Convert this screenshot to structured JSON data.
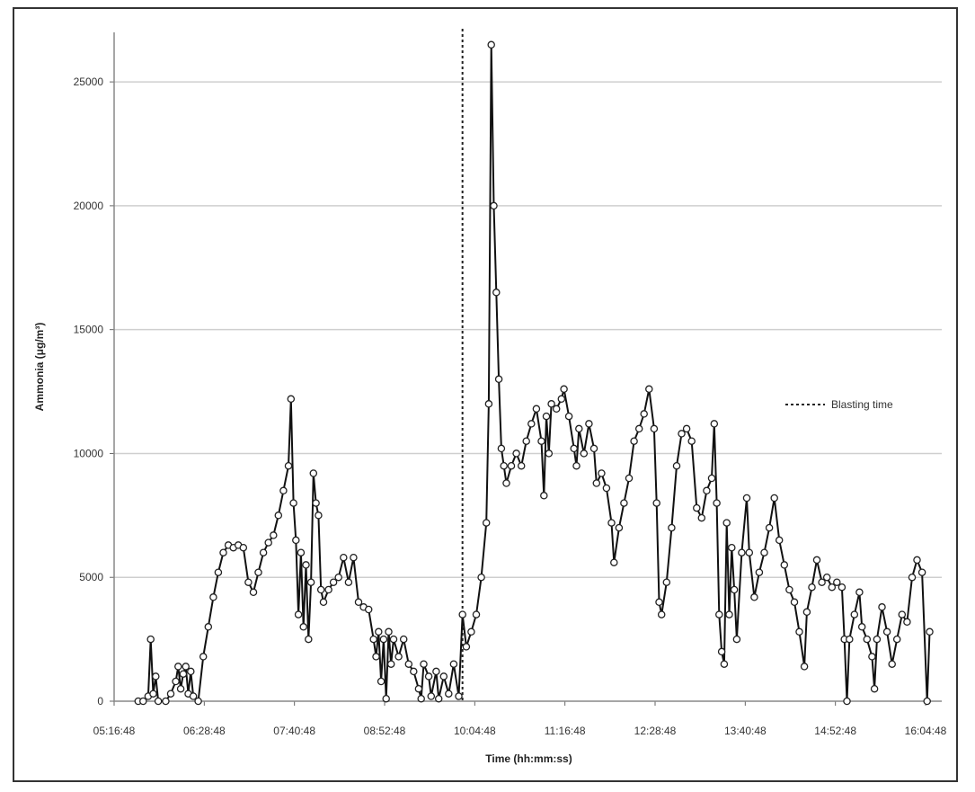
{
  "chart_data": {
    "type": "line",
    "xlabel": "Time (hh:mm:ss)",
    "ylabel": "Ammonia (μg/m³)",
    "x_tick_labels": [
      "05:16:48",
      "06:28:48",
      "07:40:48",
      "08:52:48",
      "10:04:48",
      "11:16:48",
      "12:28:48",
      "13:40:48",
      "14:52:48",
      "16:04:48"
    ],
    "y_ticks": [
      0,
      5000,
      10000,
      15000,
      20000,
      25000
    ],
    "ylim": [
      0,
      27000
    ],
    "grid": "horizontal",
    "legend": {
      "label": "Blasting time",
      "placement": "right",
      "style": "dotted line"
    },
    "blasting_time": "09:55",
    "series": [
      {
        "marker": "open circle",
        "points": [
          [
            "05:36",
            0
          ],
          [
            "05:40",
            0
          ],
          [
            "05:44",
            200
          ],
          [
            "05:46",
            2500
          ],
          [
            "05:48",
            300
          ],
          [
            "05:50",
            1000
          ],
          [
            "05:52",
            0
          ],
          [
            "05:58",
            0
          ],
          [
            "06:02",
            300
          ],
          [
            "06:06",
            800
          ],
          [
            "06:08",
            1400
          ],
          [
            "06:10",
            500
          ],
          [
            "06:12",
            1100
          ],
          [
            "06:14",
            1400
          ],
          [
            "06:16",
            300
          ],
          [
            "06:18",
            1200
          ],
          [
            "06:20",
            200
          ],
          [
            "06:24",
            0
          ],
          [
            "06:28",
            1800
          ],
          [
            "06:32",
            3000
          ],
          [
            "06:36",
            4200
          ],
          [
            "06:40",
            5200
          ],
          [
            "06:44",
            6000
          ],
          [
            "06:48",
            6300
          ],
          [
            "06:52",
            6200
          ],
          [
            "06:56",
            6300
          ],
          [
            "07:00",
            6200
          ],
          [
            "07:04",
            4800
          ],
          [
            "07:08",
            4400
          ],
          [
            "07:12",
            5200
          ],
          [
            "07:16",
            6000
          ],
          [
            "07:20",
            6400
          ],
          [
            "07:24",
            6700
          ],
          [
            "07:28",
            7500
          ],
          [
            "07:32",
            8500
          ],
          [
            "07:36",
            9500
          ],
          [
            "07:38",
            12200
          ],
          [
            "07:40",
            8000
          ],
          [
            "07:42",
            6500
          ],
          [
            "07:44",
            3500
          ],
          [
            "07:46",
            6000
          ],
          [
            "07:48",
            3000
          ],
          [
            "07:50",
            5500
          ],
          [
            "07:52",
            2500
          ],
          [
            "07:54",
            4800
          ],
          [
            "07:56",
            9200
          ],
          [
            "07:58",
            8000
          ],
          [
            "08:00",
            7500
          ],
          [
            "08:02",
            4500
          ],
          [
            "08:04",
            4000
          ],
          [
            "08:08",
            4500
          ],
          [
            "08:12",
            4800
          ],
          [
            "08:16",
            5000
          ],
          [
            "08:20",
            5800
          ],
          [
            "08:24",
            4800
          ],
          [
            "08:28",
            5800
          ],
          [
            "08:32",
            4000
          ],
          [
            "08:36",
            3800
          ],
          [
            "08:40",
            3700
          ],
          [
            "08:44",
            2500
          ],
          [
            "08:46",
            1800
          ],
          [
            "08:48",
            2800
          ],
          [
            "08:50",
            800
          ],
          [
            "08:52",
            2500
          ],
          [
            "08:54",
            100
          ],
          [
            "08:56",
            2800
          ],
          [
            "08:58",
            1500
          ],
          [
            "09:00",
            2500
          ],
          [
            "09:04",
            1800
          ],
          [
            "09:08",
            2500
          ],
          [
            "09:12",
            1500
          ],
          [
            "09:16",
            1200
          ],
          [
            "09:20",
            500
          ],
          [
            "09:22",
            100
          ],
          [
            "09:24",
            1500
          ],
          [
            "09:28",
            1000
          ],
          [
            "09:30",
            200
          ],
          [
            "09:34",
            1200
          ],
          [
            "09:36",
            100
          ],
          [
            "09:40",
            1000
          ],
          [
            "09:44",
            300
          ],
          [
            "09:48",
            1500
          ],
          [
            "09:52",
            200
          ],
          [
            "09:55",
            3500
          ],
          [
            "09:58",
            2200
          ],
          [
            "10:02",
            2800
          ],
          [
            "10:06",
            3500
          ],
          [
            "10:10",
            5000
          ],
          [
            "10:14",
            7200
          ],
          [
            "10:16",
            12000
          ],
          [
            "10:18",
            26500
          ],
          [
            "10:20",
            20000
          ],
          [
            "10:22",
            16500
          ],
          [
            "10:24",
            13000
          ],
          [
            "10:26",
            10200
          ],
          [
            "10:28",
            9500
          ],
          [
            "10:30",
            8800
          ],
          [
            "10:34",
            9500
          ],
          [
            "10:38",
            10000
          ],
          [
            "10:42",
            9500
          ],
          [
            "10:46",
            10500
          ],
          [
            "10:50",
            11200
          ],
          [
            "10:54",
            11800
          ],
          [
            "10:58",
            10500
          ],
          [
            "11:00",
            8300
          ],
          [
            "11:02",
            11500
          ],
          [
            "11:04",
            10000
          ],
          [
            "11:06",
            12000
          ],
          [
            "11:10",
            11800
          ],
          [
            "11:14",
            12200
          ],
          [
            "11:16",
            12600
          ],
          [
            "11:20",
            11500
          ],
          [
            "11:24",
            10200
          ],
          [
            "11:26",
            9500
          ],
          [
            "11:28",
            11000
          ],
          [
            "11:32",
            10000
          ],
          [
            "11:36",
            11200
          ],
          [
            "11:40",
            10200
          ],
          [
            "11:42",
            8800
          ],
          [
            "11:46",
            9200
          ],
          [
            "11:50",
            8600
          ],
          [
            "11:54",
            7200
          ],
          [
            "11:56",
            5600
          ],
          [
            "12:00",
            7000
          ],
          [
            "12:04",
            8000
          ],
          [
            "12:08",
            9000
          ],
          [
            "12:12",
            10500
          ],
          [
            "12:16",
            11000
          ],
          [
            "12:20",
            11600
          ],
          [
            "12:24",
            12600
          ],
          [
            "12:28",
            11000
          ],
          [
            "12:30",
            8000
          ],
          [
            "12:32",
            4000
          ],
          [
            "12:34",
            3500
          ],
          [
            "12:38",
            4800
          ],
          [
            "12:42",
            7000
          ],
          [
            "12:46",
            9500
          ],
          [
            "12:50",
            10800
          ],
          [
            "12:54",
            11000
          ],
          [
            "12:58",
            10500
          ],
          [
            "13:02",
            7800
          ],
          [
            "13:06",
            7400
          ],
          [
            "13:10",
            8500
          ],
          [
            "13:14",
            9000
          ],
          [
            "13:16",
            11200
          ],
          [
            "13:18",
            8000
          ],
          [
            "13:20",
            3500
          ],
          [
            "13:22",
            2000
          ],
          [
            "13:24",
            1500
          ],
          [
            "13:26",
            7200
          ],
          [
            "13:28",
            3500
          ],
          [
            "13:30",
            6200
          ],
          [
            "13:32",
            4500
          ],
          [
            "13:34",
            2500
          ],
          [
            "13:38",
            6000
          ],
          [
            "13:42",
            8200
          ],
          [
            "13:44",
            6000
          ],
          [
            "13:48",
            4200
          ],
          [
            "13:52",
            5200
          ],
          [
            "13:56",
            6000
          ],
          [
            "14:00",
            7000
          ],
          [
            "14:04",
            8200
          ],
          [
            "14:08",
            6500
          ],
          [
            "14:12",
            5500
          ],
          [
            "14:16",
            4500
          ],
          [
            "14:20",
            4000
          ],
          [
            "14:24",
            2800
          ],
          [
            "14:28",
            1400
          ],
          [
            "14:30",
            3600
          ],
          [
            "14:34",
            4600
          ],
          [
            "14:38",
            5700
          ],
          [
            "14:42",
            4800
          ],
          [
            "14:46",
            5000
          ],
          [
            "14:50",
            4600
          ],
          [
            "14:54",
            4800
          ],
          [
            "14:58",
            4600
          ],
          [
            "15:00",
            2500
          ],
          [
            "15:02",
            0
          ],
          [
            "15:04",
            2500
          ],
          [
            "15:08",
            3500
          ],
          [
            "15:12",
            4400
          ],
          [
            "15:14",
            3000
          ],
          [
            "15:18",
            2500
          ],
          [
            "15:22",
            1800
          ],
          [
            "15:24",
            500
          ],
          [
            "15:26",
            2500
          ],
          [
            "15:30",
            3800
          ],
          [
            "15:34",
            2800
          ],
          [
            "15:38",
            1500
          ],
          [
            "15:42",
            2500
          ],
          [
            "15:46",
            3500
          ],
          [
            "15:50",
            3200
          ],
          [
            "15:54",
            5000
          ],
          [
            "15:58",
            5700
          ],
          [
            "16:02",
            5200
          ],
          [
            "16:06",
            0
          ],
          [
            "16:08",
            2800
          ]
        ]
      }
    ]
  }
}
